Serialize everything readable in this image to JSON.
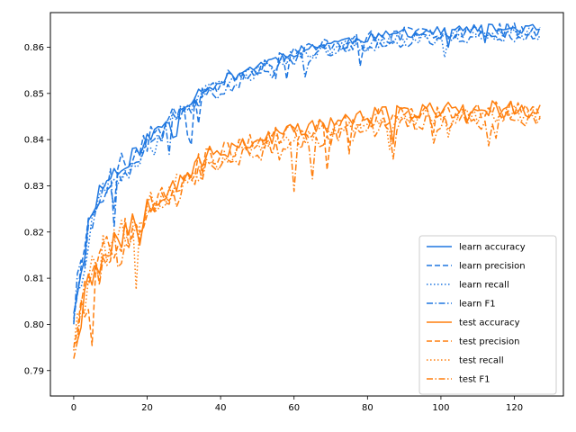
{
  "chart_data": {
    "type": "line",
    "title": "",
    "xlabel": "",
    "ylabel": "",
    "xlim": [
      -6.35,
      133.35
    ],
    "ylim": [
      0.7845,
      0.8675
    ],
    "xticks": [
      0,
      20,
      40,
      60,
      80,
      100,
      120
    ],
    "yticks": [
      0.79,
      0.8,
      0.81,
      0.82,
      0.83,
      0.84,
      0.85,
      0.86
    ],
    "ytick_labels": [
      "0.79",
      "0.80",
      "0.81",
      "0.82",
      "0.83",
      "0.84",
      "0.85",
      "0.86"
    ],
    "grid": false,
    "legend_position": "lower-right",
    "colors": {
      "learn": "#1f77e0",
      "test": "#ff7f0e"
    },
    "anchors": {
      "learn": {
        "x": [
          0,
          2,
          5,
          8,
          12,
          16,
          20,
          25,
          30,
          35,
          40,
          45,
          50,
          55,
          60,
          70,
          80,
          90,
          100,
          110,
          120,
          127
        ],
        "y": [
          0.804,
          0.812,
          0.826,
          0.83,
          0.834,
          0.8365,
          0.84,
          0.8435,
          0.8475,
          0.851,
          0.8525,
          0.8545,
          0.856,
          0.8575,
          0.859,
          0.861,
          0.862,
          0.863,
          0.8635,
          0.864,
          0.864,
          0.864
        ]
      },
      "test": {
        "x": [
          0,
          2,
          5,
          8,
          12,
          16,
          20,
          25,
          30,
          35,
          40,
          45,
          50,
          55,
          60,
          70,
          80,
          90,
          100,
          110,
          120,
          127
        ],
        "y": [
          0.798,
          0.803,
          0.811,
          0.816,
          0.819,
          0.821,
          0.826,
          0.829,
          0.832,
          0.835,
          0.837,
          0.8385,
          0.8395,
          0.8405,
          0.8415,
          0.843,
          0.8445,
          0.8455,
          0.846,
          0.8462,
          0.8465,
          0.8455
        ]
      }
    },
    "series": [
      {
        "name": "learn accuracy",
        "group": "learn",
        "style": "solid",
        "offset": 0.0,
        "noise": 0.001,
        "seed": 11
      },
      {
        "name": "learn precision",
        "group": "learn",
        "style": "dashed",
        "offset": -0.0002,
        "noise": 0.0016,
        "seed": 23
      },
      {
        "name": "learn recall",
        "group": "learn",
        "style": "dotted",
        "offset": -0.0012,
        "noise": 0.0014,
        "seed": 37
      },
      {
        "name": "learn F1",
        "group": "learn",
        "style": "dashdot",
        "offset": -0.0016,
        "noise": 0.0015,
        "seed": 41
      },
      {
        "name": "test accuracy",
        "group": "test",
        "style": "solid",
        "offset": 0.0005,
        "noise": 0.0018,
        "seed": 53
      },
      {
        "name": "test precision",
        "group": "test",
        "style": "dashed",
        "offset": 0.0,
        "noise": 0.002,
        "seed": 67
      },
      {
        "name": "test recall",
        "group": "test",
        "style": "dotted",
        "offset": -0.0008,
        "noise": 0.0019,
        "seed": 71
      },
      {
        "name": "test F1",
        "group": "test",
        "style": "dashdot",
        "offset": -0.0022,
        "noise": 0.0022,
        "seed": 89
      }
    ]
  }
}
